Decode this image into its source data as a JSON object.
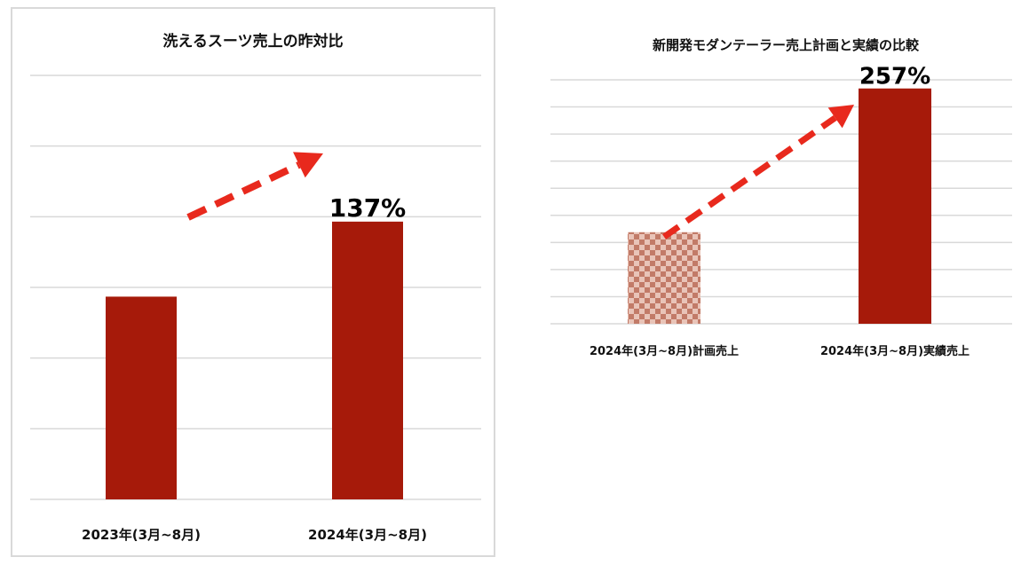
{
  "chart_data": [
    {
      "type": "bar",
      "title": "洗えるスーツ売上の昨対比",
      "categories": [
        "2023年(3月~8月)",
        "2024年(3月~8月)"
      ],
      "values": [
        100,
        137
      ],
      "ylim": [
        0,
        175
      ],
      "grid": true,
      "annotation": {
        "text": "137%",
        "arrow_from": 0,
        "arrow_to": 1
      },
      "colors": {
        "bar": "#a61a0a",
        "arrow": "#e8291d"
      },
      "bar_styles": [
        "solid",
        "solid"
      ]
    },
    {
      "type": "bar",
      "title": "新開発モダンテーラー売上計画と実績の比較",
      "categories": [
        "2024年(3月~8月)計画売上",
        "2024年(3月~8月)実績売上"
      ],
      "values": [
        100,
        257
      ],
      "ylim": [
        0,
        280
      ],
      "grid": true,
      "annotation": {
        "text": "257%",
        "arrow_from": 0,
        "arrow_to": 1
      },
      "colors": {
        "bar": "#a61a0a",
        "checker_a": "#c27b68",
        "checker_b": "#e9c4b8",
        "arrow": "#e8291d"
      },
      "bar_styles": [
        "checker",
        "solid"
      ]
    }
  ]
}
